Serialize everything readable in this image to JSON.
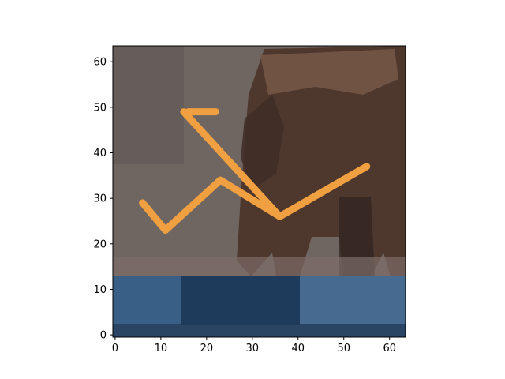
{
  "image": {
    "description_icon": "pixelated-photo-bear-icon",
    "grid_size": [
      64,
      64
    ]
  },
  "axes": {
    "x_ticks": [
      "0",
      "10",
      "20",
      "30",
      "40",
      "50",
      "60"
    ],
    "y_ticks": [
      "0",
      "10",
      "20",
      "30",
      "40",
      "50",
      "60"
    ],
    "x_values": [
      0,
      10,
      20,
      30,
      40,
      50,
      60
    ],
    "y_values": [
      0,
      10,
      20,
      30,
      40,
      50,
      60
    ],
    "xlim": [
      -0.5,
      63.5
    ],
    "ylim": [
      63.5,
      -0.5
    ]
  },
  "overlay": {
    "color": "#f0a040",
    "path": [
      [
        6,
        29
      ],
      [
        11,
        23
      ],
      [
        23,
        34
      ],
      [
        36,
        26
      ],
      [
        55,
        37
      ]
    ],
    "path2": [
      [
        15,
        49
      ],
      [
        36,
        26
      ]
    ],
    "path3": [
      [
        16,
        49
      ],
      [
        22,
        49
      ]
    ]
  },
  "colors": {
    "rock": "#6f6561",
    "bear": "#5a3f33",
    "water": "#3a5f87",
    "water_dark": "#1f3b5c"
  }
}
